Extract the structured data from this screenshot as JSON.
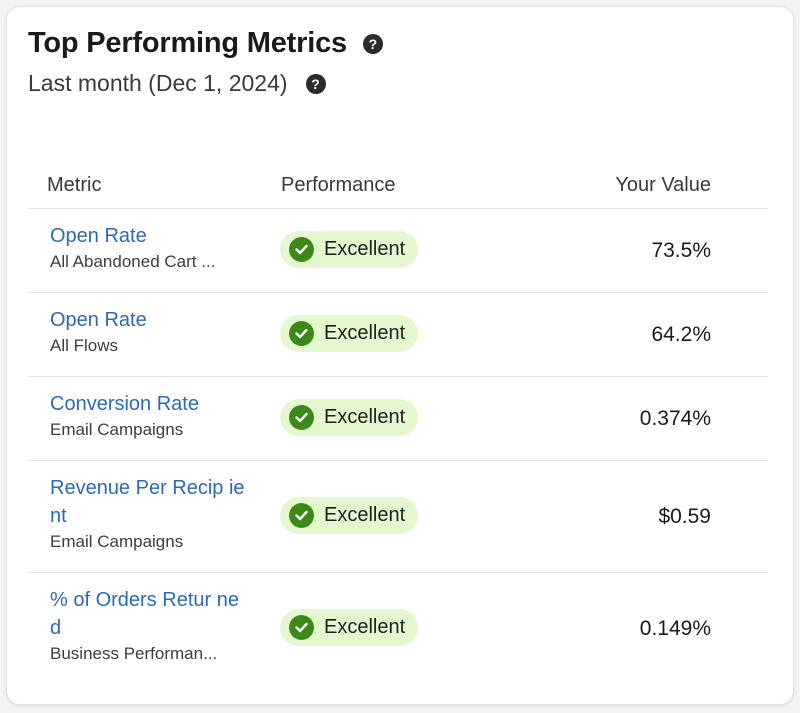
{
  "card": {
    "title": "Top Performing Metrics",
    "subtitle": "Last month (Dec 1, 2024)",
    "help_glyph": "?"
  },
  "table": {
    "headers": {
      "metric": "Metric",
      "performance": "Performance",
      "value": "Your Value"
    },
    "rows": [
      {
        "metric": "Open Rate",
        "sub": "All Abandoned Cart ...",
        "performance": "Excellent",
        "value": "73.5%"
      },
      {
        "metric": "Open Rate",
        "sub": "All Flows",
        "performance": "Excellent",
        "value": "64.2%"
      },
      {
        "metric": "Conversion Rate",
        "sub": "Email Campaigns",
        "performance": "Excellent",
        "value": "0.374%"
      },
      {
        "metric": "Revenue Per Recip ient",
        "sub": "Email Campaigns",
        "performance": "Excellent",
        "value": "$0.59"
      },
      {
        "metric": "% of Orders Retur ned",
        "sub": "Business Performan...",
        "performance": "Excellent",
        "value": "0.149%"
      }
    ]
  },
  "icons": {
    "help": "question-circle-icon",
    "status": "check-circle-icon"
  },
  "colors": {
    "link": "#2c6ab5",
    "badge_bg": "#e5f7cf",
    "check": "#3b8a19"
  }
}
